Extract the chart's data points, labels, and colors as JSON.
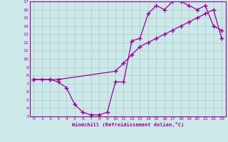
{
  "xlabel": "Windchill (Refroidissement éolien,°C)",
  "background_color": "#cde8e8",
  "line_color": "#990099",
  "grid_color": "#aacccc",
  "xlim": [
    -0.5,
    23.5
  ],
  "ylim": [
    3,
    17
  ],
  "xticks": [
    0,
    1,
    2,
    3,
    4,
    5,
    6,
    7,
    8,
    9,
    10,
    11,
    12,
    13,
    14,
    15,
    16,
    17,
    18,
    19,
    20,
    21,
    22,
    23
  ],
  "yticks": [
    3,
    4,
    5,
    6,
    7,
    8,
    9,
    10,
    11,
    12,
    13,
    14,
    15,
    16,
    17
  ],
  "line1_x": [
    0,
    1,
    2,
    3,
    4,
    5,
    6,
    7,
    8,
    9,
    10,
    11,
    12,
    13,
    14,
    15,
    16,
    17,
    18,
    19,
    20,
    21,
    22,
    23
  ],
  "line1_y": [
    7.5,
    7.5,
    7.5,
    7.2,
    6.5,
    4.5,
    3.5,
    3.2,
    3.2,
    3.5,
    7.2,
    7.2,
    12.2,
    12.5,
    15.5,
    16.5,
    16.0,
    17.0,
    17.0,
    16.5,
    16.0,
    16.5,
    14.0,
    13.5
  ],
  "line2_x": [
    0,
    2,
    3,
    10,
    11,
    12,
    13,
    14,
    15,
    16,
    17,
    18,
    19,
    20,
    21,
    22,
    23
  ],
  "line2_y": [
    7.5,
    7.5,
    7.5,
    8.5,
    9.5,
    10.5,
    11.5,
    12.0,
    12.5,
    13.0,
    13.5,
    14.0,
    14.5,
    15.0,
    15.5,
    16.0,
    12.5
  ],
  "marker": "+",
  "markersize": 4,
  "linewidth": 0.9
}
